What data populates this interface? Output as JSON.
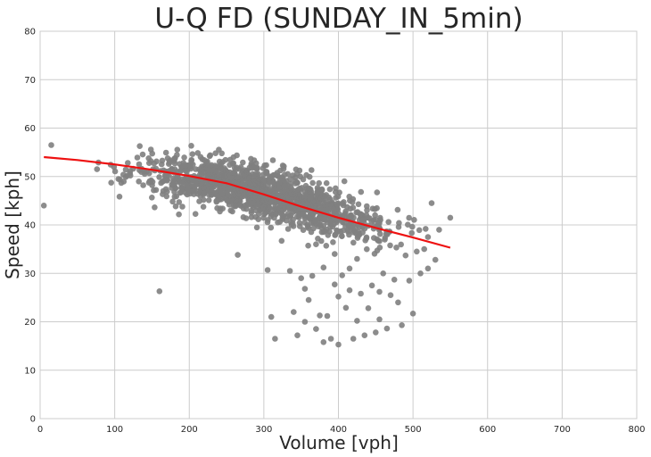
{
  "chart_data": {
    "type": "scatter",
    "title": "U-Q FD (SUNDAY_IN_5min)",
    "xlabel": "Volume [vph]",
    "ylabel": "Speed [kph]",
    "xlim": [
      0,
      800
    ],
    "ylim": [
      0,
      80
    ],
    "xticks": [
      0,
      100,
      200,
      300,
      400,
      500,
      600,
      700,
      800
    ],
    "yticks": [
      0,
      10,
      20,
      30,
      40,
      50,
      60,
      70,
      80
    ],
    "grid": true,
    "point_color": "#808080",
    "trend_color": "#ee1111",
    "cluster": {
      "x_range": [
        60,
        540
      ],
      "point_count": 1400,
      "center_line": [
        [
          60,
          52
        ],
        [
          150,
          50.5
        ],
        [
          250,
          48.5
        ],
        [
          350,
          44.5
        ],
        [
          450,
          40
        ],
        [
          540,
          37
        ]
      ],
      "spread_sd": 2.6
    },
    "outliers": [
      [
        5,
        44
      ],
      [
        15,
        56.5
      ],
      [
        160,
        26.3
      ],
      [
        265,
        33.8
      ],
      [
        305,
        30.7
      ],
      [
        310,
        21
      ],
      [
        315,
        16.5
      ],
      [
        340,
        22
      ],
      [
        345,
        17.2
      ],
      [
        350,
        29
      ],
      [
        355,
        20
      ],
      [
        360,
        24.5
      ],
      [
        365,
        29.5
      ],
      [
        370,
        18.5
      ],
      [
        375,
        21.3
      ],
      [
        380,
        15.8
      ],
      [
        385,
        21.2
      ],
      [
        390,
        16.5
      ],
      [
        395,
        27.7
      ],
      [
        400,
        15.3
      ],
      [
        400,
        25.2
      ],
      [
        405,
        29.6
      ],
      [
        410,
        22.9
      ],
      [
        415,
        26.5
      ],
      [
        420,
        16.5
      ],
      [
        425,
        20.2
      ],
      [
        430,
        25.8
      ],
      [
        435,
        17.2
      ],
      [
        440,
        22.8
      ],
      [
        445,
        27.5
      ],
      [
        450,
        17.8
      ],
      [
        455,
        26.2
      ],
      [
        455,
        20.5
      ],
      [
        460,
        30
      ],
      [
        465,
        18.6
      ],
      [
        470,
        25.5
      ],
      [
        475,
        28.7
      ],
      [
        480,
        24
      ],
      [
        485,
        19.3
      ],
      [
        490,
        33.7
      ],
      [
        495,
        28.5
      ],
      [
        500,
        21.7
      ],
      [
        505,
        34.5
      ],
      [
        510,
        30
      ],
      [
        515,
        35
      ],
      [
        520,
        31
      ],
      [
        530,
        32.8
      ],
      [
        550,
        41.5
      ],
      [
        535,
        39
      ],
      [
        525,
        44.5
      ],
      [
        520,
        37.5
      ],
      [
        425,
        33
      ],
      [
        415,
        31
      ],
      [
        395,
        34
      ],
      [
        380,
        31.2
      ],
      [
        370,
        36
      ],
      [
        355,
        26.8
      ],
      [
        335,
        30.5
      ]
    ],
    "trend_line": [
      [
        5,
        54
      ],
      [
        50,
        53.4
      ],
      [
        100,
        52.5
      ],
      [
        150,
        51.4
      ],
      [
        200,
        50.1
      ],
      [
        250,
        48.6
      ],
      [
        300,
        46.3
      ],
      [
        350,
        43.8
      ],
      [
        400,
        41.5
      ],
      [
        450,
        39.4
      ],
      [
        500,
        37.4
      ],
      [
        550,
        35.3
      ]
    ]
  }
}
